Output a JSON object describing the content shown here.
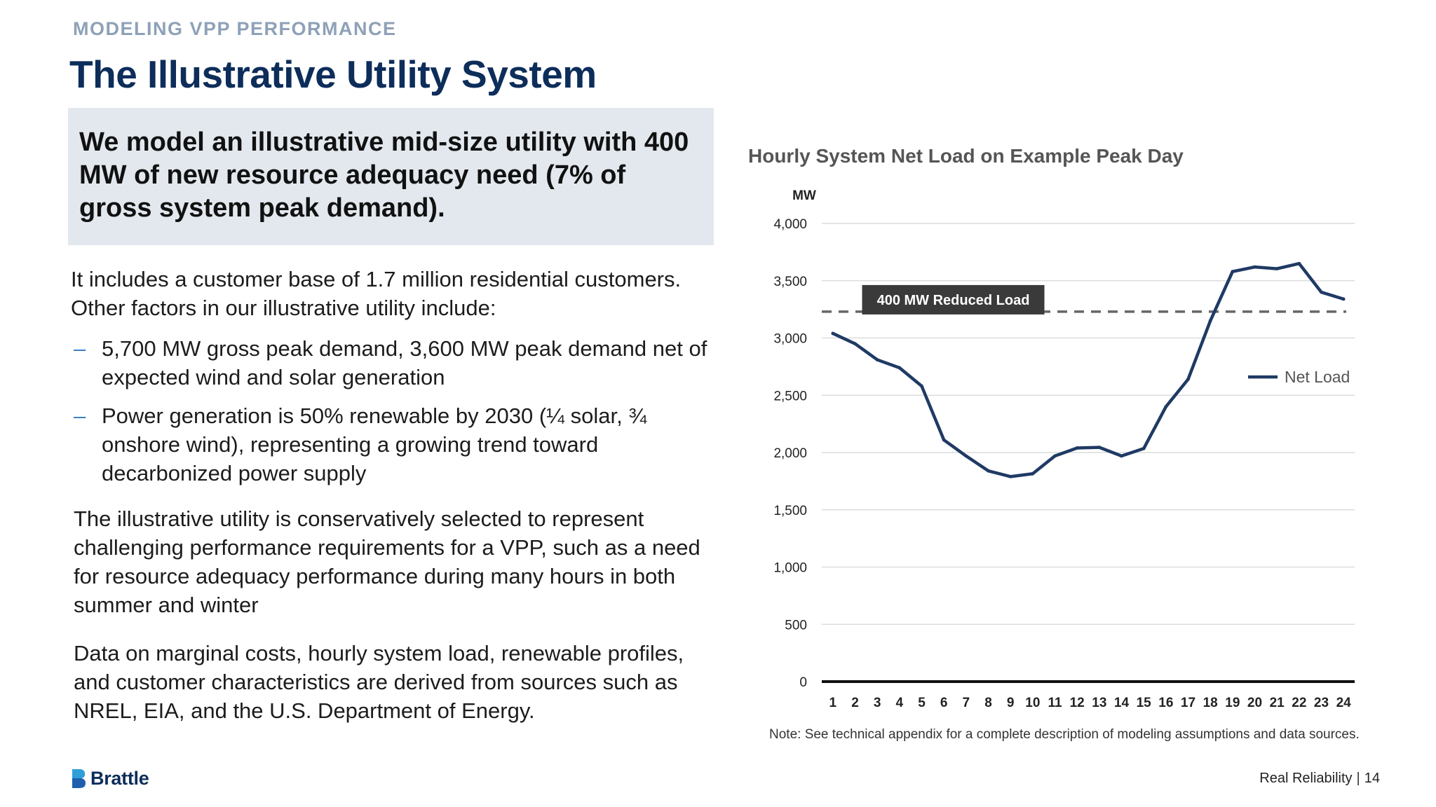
{
  "header": {
    "kicker": "MODELING VPP PERFORMANCE",
    "title": "The Illustrative Utility System"
  },
  "callout": {
    "text": "We model an illustrative mid-size utility with 400 MW of new resource adequacy need (7% of gross system peak demand)."
  },
  "body": {
    "intro": "It includes a customer base of 1.7 million residential customers. Other factors in our illustrative utility include:",
    "bullet_marker": "–",
    "bullets": [
      "5,700 MW gross peak demand, 3,600 MW peak demand net of expected wind and solar generation",
      "Power generation is 50% renewable by 2030 (¼ solar, ¾ onshore wind), representing a growing trend toward decarbonized power supply"
    ],
    "paragraph2": "The illustrative utility is conservatively selected to represent challenging performance requirements for a VPP, such as a need for resource adequacy performance during many hours in both summer and winter",
    "paragraph3": "Data on marginal costs, hourly system load, renewable profiles, and customer characteristics are derived from sources such as NREL, EIA, and the U.S. Department of Energy."
  },
  "chart_data": {
    "type": "line",
    "title": "Hourly System Net Load on Example Peak Day",
    "ylabel": "MW",
    "xlabel": "",
    "ylim": [
      0,
      4000
    ],
    "yticks": [
      0,
      500,
      1000,
      1500,
      2000,
      2500,
      3000,
      3500,
      4000
    ],
    "ytick_labels": [
      "0",
      "500",
      "1,000",
      "1,500",
      "2,000",
      "2,500",
      "3,000",
      "3,500",
      "4,000"
    ],
    "x": [
      "1",
      "2",
      "3",
      "4",
      "5",
      "6",
      "7",
      "8",
      "9",
      "10",
      "11",
      "12",
      "13",
      "14",
      "15",
      "16",
      "17",
      "18",
      "19",
      "20",
      "21",
      "22",
      "23",
      "24"
    ],
    "series": [
      {
        "name": "Net Load",
        "color": "#1f3a64",
        "values": [
          3040,
          2950,
          2810,
          2740,
          2580,
          2110,
          1970,
          1840,
          1790,
          1815,
          1970,
          2040,
          2045,
          1970,
          2035,
          2400,
          2640,
          3150,
          3580,
          3620,
          3605,
          3650,
          3400,
          3340
        ]
      }
    ],
    "reference_line": {
      "value": 3230,
      "style": "dashed",
      "color": "#666666"
    },
    "annotation": {
      "text": "400 MW Reduced Load",
      "bg": "#3a3a3a",
      "color": "#ffffff"
    },
    "legend_position": "right",
    "grid": true,
    "note": "Note: See technical appendix for a complete description of modeling assumptions and data sources."
  },
  "footer": {
    "logo": "Brattle",
    "text": "Real Reliability",
    "separator": "|",
    "page": "14"
  },
  "colors": {
    "title": "#0d2d5a",
    "kicker": "#8ea1b8",
    "callout_bg": "#e2e8ee",
    "bullet_dash": "#3d7fc0"
  }
}
